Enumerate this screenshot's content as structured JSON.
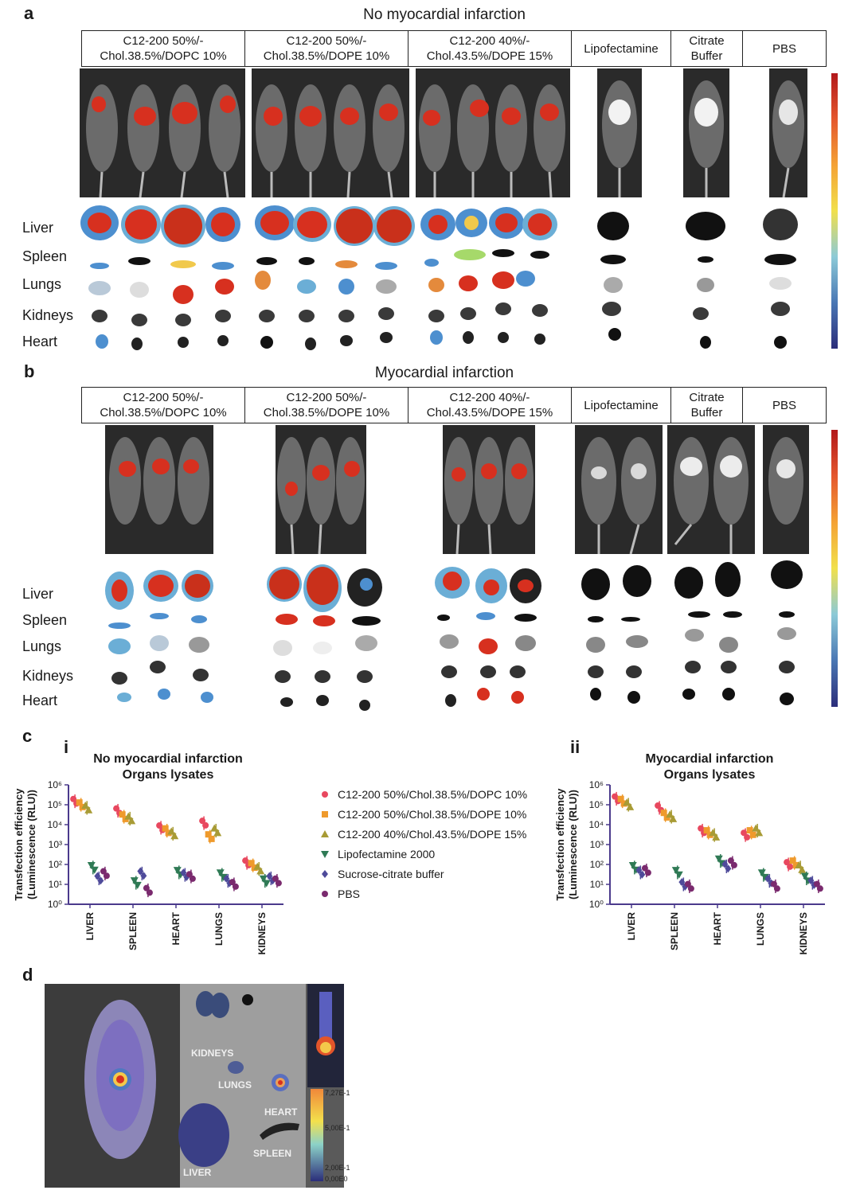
{
  "panel_a": {
    "letter": "a",
    "title": "No myocardial infarction",
    "groups": [
      {
        "label": "C12-200 50%/-\nChol.38.5%/DOPC 10%"
      },
      {
        "label": "C12-200 50%/-\nChol.38.5%/DOPE 10%"
      },
      {
        "label": "C12-200 40%/-\nChol.43.5%/DOPE 15%"
      },
      {
        "label": "Lipofectamine"
      },
      {
        "label": "Citrate\nBuffer"
      },
      {
        "label": "PBS"
      }
    ],
    "organs": [
      "Liver",
      "Spleen",
      "Lungs",
      "Kidneys",
      "Heart"
    ]
  },
  "panel_b": {
    "letter": "b",
    "title": "Myocardial infarction",
    "groups": [
      {
        "label": "C12-200 50%/-\nChol.38.5%/DOPC 10%"
      },
      {
        "label": "C12-200 50%/-\nChol.38.5%/DOPE 10%"
      },
      {
        "label": "C12-200 40%/-\nChol.43.5%/DOPE 15%"
      },
      {
        "label": "Lipofectamine"
      },
      {
        "label": "Citrate\nBuffer"
      },
      {
        "label": "PBS"
      }
    ],
    "organs": [
      "Liver",
      "Spleen",
      "Lungs",
      "Kidneys",
      "Heart"
    ]
  },
  "panel_c": {
    "letter": "c",
    "sub_i": "i",
    "sub_ii": "ii",
    "legend": [
      {
        "name": "C12-200 50%/Chol.38.5%/DOPC 10%",
        "color": "#e8485f",
        "marker": "circle"
      },
      {
        "name": "C12-200 50%/Chol.38.5%/DOPE 10%",
        "color": "#ef9a2c",
        "marker": "square"
      },
      {
        "name": "C12-200 40%/Chol.43.5%/DOPE 15%",
        "color": "#a89b35",
        "marker": "triangle-up"
      },
      {
        "name": "Lipofectamine 2000",
        "color": "#2f7a55",
        "marker": "triangle-down"
      },
      {
        "name": "Sucrose-citrate buffer",
        "color": "#4e4a9a",
        "marker": "diamond"
      },
      {
        "name": "PBS",
        "color": "#7a2a6e",
        "marker": "circle"
      }
    ]
  },
  "chart_data": [
    {
      "type": "scatter",
      "title": "No myocardial infarction\nOrgans lysates",
      "ylabel": "Transfection efficiency\n(Luminescence (RLU))",
      "yscale": "log",
      "ylim": [
        1,
        1000000
      ],
      "yticks": [
        "10⁰",
        "10¹",
        "10²",
        "10³",
        "10⁴",
        "10⁵",
        "10⁶"
      ],
      "categories": [
        "LIVER",
        "SPLEEN",
        "HEART",
        "LUNGS",
        "KIDNEYS"
      ],
      "series": [
        {
          "name": "C12-200 50%/Chol.38.5%/DOPC 10%",
          "values": [
            150000,
            50000,
            7000,
            12000,
            120
          ]
        },
        {
          "name": "C12-200 50%/Chol.38.5%/DOPE 10%",
          "values": [
            100000,
            25000,
            5000,
            2500,
            90
          ]
        },
        {
          "name": "C12-200 40%/Chol.43.5%/DOPE 15%",
          "values": [
            70000,
            20000,
            3500,
            5000,
            60
          ]
        },
        {
          "name": "Lipofectamine 2000",
          "values": [
            70,
            12,
            40,
            30,
            15
          ]
        },
        {
          "name": "Sucrose-citrate buffer",
          "values": [
            20,
            35,
            30,
            15,
            20
          ]
        },
        {
          "name": "PBS",
          "values": [
            35,
            5,
            25,
            10,
            15
          ]
        }
      ]
    },
    {
      "type": "scatter",
      "title": "Myocardial infarction\nOrgans lysates",
      "ylabel": "Transfection efficiency\n(Luminescence (RLU))",
      "yscale": "log",
      "ylim": [
        1,
        1000000
      ],
      "yticks": [
        "10⁰",
        "10¹",
        "10²",
        "10³",
        "10⁴",
        "10⁵",
        "10⁶"
      ],
      "categories": [
        "LIVER",
        "SPLEEN",
        "HEART",
        "LUNGS",
        "KIDNEYS"
      ],
      "series": [
        {
          "name": "C12-200 50%/Chol.38.5%/DOPC 10%",
          "values": [
            200000,
            70000,
            5000,
            3000,
            100
          ]
        },
        {
          "name": "C12-200 50%/Chol.38.5%/DOPE 10%",
          "values": [
            150000,
            30000,
            4000,
            4000,
            120
          ]
        },
        {
          "name": "C12-200 40%/Chol.43.5%/DOPE 15%",
          "values": [
            100000,
            25000,
            3000,
            5000,
            70
          ]
        },
        {
          "name": "Lipofectamine 2000",
          "values": [
            70,
            40,
            150,
            30,
            20
          ]
        },
        {
          "name": "Sucrose-citrate buffer",
          "values": [
            40,
            10,
            80,
            15,
            12
          ]
        },
        {
          "name": "PBS",
          "values": [
            50,
            8,
            120,
            8,
            8
          ]
        }
      ]
    }
  ],
  "panel_d": {
    "letter": "d",
    "labels": {
      "kidneys": "KIDNEYS",
      "lungs": "LUNGS",
      "heart": "HEART",
      "spleen": "SPLEEN",
      "liver": "LIVER"
    },
    "scale_ticks": [
      "7,27E-1",
      "5,00E-1",
      "2,00E-1",
      "0,00E0"
    ]
  }
}
